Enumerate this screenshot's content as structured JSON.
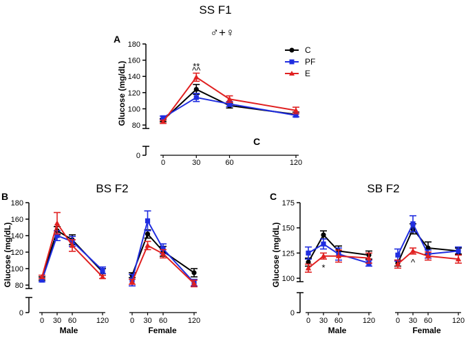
{
  "colors": {
    "C": "#000000",
    "PF": "#1f2de0",
    "E": "#e02020"
  },
  "chart_data": [
    {
      "id": "A",
      "type": "line",
      "panel_label": "A",
      "title": "SS F1",
      "sex_symbol": "♂+♀",
      "stray_label": "C",
      "ylabel": "Glucose (mg/dL)",
      "ylim": [
        0,
        180
      ],
      "yticks": [
        "0",
        "80",
        "100",
        "120",
        "140",
        "160",
        "180"
      ],
      "axis_break": true,
      "groups": [
        {
          "label": "",
          "x": [
            0,
            30,
            60,
            120
          ],
          "tick_labels": [
            "0",
            "30",
            "60",
            "120"
          ]
        }
      ],
      "series": [
        {
          "name": "C",
          "marker": "circle",
          "groups": [
            {
              "values": [
                86,
                124,
                104,
                93
              ],
              "errors": [
                2,
                6,
                3,
                3
              ]
            }
          ]
        },
        {
          "name": "PF",
          "marker": "square",
          "groups": [
            {
              "values": [
                89,
                114,
                106,
                92
              ],
              "errors": [
                2,
                5,
                3,
                2
              ]
            }
          ]
        },
        {
          "name": "E",
          "marker": "triangle",
          "groups": [
            {
              "values": [
                84,
                139,
                112,
                98
              ],
              "errors": [
                2,
                5,
                4,
                4
              ]
            }
          ]
        }
      ],
      "annotations": [
        {
          "text": "**",
          "x": 30,
          "y": 153
        },
        {
          "text": "^^",
          "x": 30,
          "y": 148
        }
      ],
      "legend": {
        "position": "top-right",
        "entries": [
          "C",
          "PF",
          "E"
        ]
      }
    },
    {
      "id": "B",
      "type": "line",
      "panel_label": "B",
      "title": "BS F2",
      "ylabel": "Glucose (mg/dL)",
      "ylim": [
        0,
        180
      ],
      "yticks": [
        "0",
        "80",
        "100",
        "120",
        "140",
        "160",
        "180"
      ],
      "axis_break": true,
      "groups": [
        {
          "label": "Male",
          "x": [
            0,
            30,
            60,
            120
          ],
          "tick_labels": [
            "0",
            "30",
            "60",
            "120"
          ]
        },
        {
          "label": "Female",
          "x": [
            0,
            30,
            60,
            120
          ],
          "tick_labels": [
            "0",
            "30",
            "60",
            "120"
          ]
        }
      ],
      "series": [
        {
          "name": "C",
          "marker": "circle",
          "groups": [
            {
              "values": [
                88,
                146,
                135,
                96
              ],
              "errors": [
                2,
                5,
                6,
                4
              ]
            },
            {
              "values": [
                92,
                142,
                121,
                95
              ],
              "errors": [
                3,
                5,
                6,
                5
              ]
            }
          ]
        },
        {
          "name": "PF",
          "marker": "square",
          "groups": [
            {
              "values": [
                86,
                140,
                133,
                98
              ],
              "errors": [
                2,
                6,
                6,
                4
              ]
            },
            {
              "values": [
                86,
                158,
                124,
                83
              ],
              "errors": [
                7,
                12,
                6,
                4
              ]
            }
          ]
        },
        {
          "name": "E",
          "marker": "triangle",
          "groups": [
            {
              "values": [
                90,
                155,
                128,
                90
              ],
              "errors": [
                2,
                13,
                7,
                2
              ]
            },
            {
              "values": [
                84,
                128,
                118,
                82
              ],
              "errors": [
                3,
                5,
                5,
                4
              ]
            }
          ]
        }
      ]
    },
    {
      "id": "C",
      "type": "line",
      "panel_label": "C",
      "title": "SB F2",
      "ylabel": "Glucose (mg/dL)",
      "ylim": [
        0,
        175
      ],
      "yticks": [
        "0",
        "100",
        "125",
        "150",
        "175"
      ],
      "axis_break": true,
      "groups": [
        {
          "label": "Male",
          "x": [
            0,
            30,
            60,
            120
          ],
          "tick_labels": [
            "0",
            "30",
            "60",
            "120"
          ]
        },
        {
          "label": "Female",
          "x": [
            0,
            30,
            60,
            120
          ],
          "tick_labels": [
            "0",
            "30",
            "60",
            "120"
          ]
        }
      ],
      "series": [
        {
          "name": "C",
          "marker": "circle",
          "groups": [
            {
              "values": [
                116,
                143,
                127,
                123
              ],
              "errors": [
                4,
                4,
                5,
                4
              ]
            },
            {
              "values": [
                115,
                149,
                130,
                127
              ],
              "errors": [
                3,
                5,
                6,
                3
              ]
            }
          ]
        },
        {
          "name": "PF",
          "marker": "square",
          "groups": [
            {
              "values": [
                125,
                134,
                124,
                115
              ],
              "errors": [
                6,
                5,
                6,
                3
              ]
            },
            {
              "values": [
                123,
                154,
                124,
                127
              ],
              "errors": [
                6,
                8,
                4,
                4
              ]
            }
          ]
        },
        {
          "name": "E",
          "marker": "triangle",
          "groups": [
            {
              "values": [
                110,
                122,
                122,
                120
              ],
              "errors": [
                4,
                3,
                6,
                5
              ]
            },
            {
              "values": [
                114,
                127,
                122,
                119
              ],
              "errors": [
                4,
                3,
                4,
                4
              ]
            }
          ]
        }
      ],
      "annotations": [
        {
          "text": "*",
          "group": 0,
          "x": 30,
          "y": 111
        },
        {
          "text": "^",
          "group": 1,
          "x": 30,
          "y": 116
        }
      ]
    }
  ]
}
